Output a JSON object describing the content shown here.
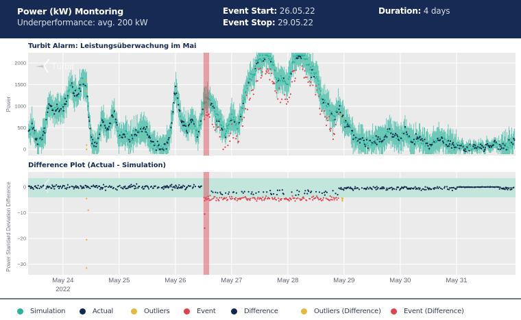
{
  "header": {
    "title": "Power (kW) Montoring",
    "subtitle": "Underperformance: avg. 200 kW",
    "event_start_label": "Event Start:",
    "event_start_value": "26.05.22",
    "event_stop_label": "Event Stop:",
    "event_stop_value": "29.05.22",
    "duration_label": "Duration:",
    "duration_value": "4 days"
  },
  "colors": {
    "header_bg": "#162a53",
    "simulation": "#26b59a",
    "actual": "#14284b",
    "outliers": "#e6b83d",
    "event": "#e0434d",
    "difference": "#14284b",
    "outliers_difference": "#e6b83d",
    "event_difference": "#e0434d",
    "band": "#c2e5dc",
    "event_band": "#e8999d",
    "plot_bg": "#ebebeb"
  },
  "watermark": "Turbit",
  "legend": [
    {
      "label": "Simulation",
      "color_key": "simulation"
    },
    {
      "label": "Actual",
      "color_key": "actual"
    },
    {
      "label": "Outliers",
      "color_key": "outliers"
    },
    {
      "label": "Event",
      "color_key": "event"
    },
    {
      "label": "Difference",
      "color_key": "difference"
    },
    {
      "label": "Outliers (Difference)",
      "color_key": "outliers_difference"
    },
    {
      "label": "Event (Difference)",
      "color_key": "event_difference"
    }
  ],
  "chart_data": [
    {
      "type": "scatter",
      "title": "Turbit Alarm: Leistungsüberwachung im Mai",
      "xlabel": "",
      "ylabel": "Power",
      "x_range_days": [
        23.38,
        32.05
      ],
      "ylim": [
        -80,
        2200
      ],
      "yticks": [
        0,
        500,
        1000,
        1500,
        2000
      ],
      "xticks": [
        {
          "day": 24,
          "label": "May 24",
          "sublabel": "2022"
        },
        {
          "day": 25,
          "label": "May 25"
        },
        {
          "day": 26,
          "label": "May 26"
        },
        {
          "day": 27,
          "label": "May 27"
        },
        {
          "day": 28,
          "label": "May 28"
        },
        {
          "day": 29,
          "label": "May 29"
        },
        {
          "day": 30,
          "label": "May 30"
        },
        {
          "day": 31,
          "label": "May 31"
        }
      ],
      "grid": true,
      "event_window_days": [
        26.5,
        26.6
      ],
      "series_profile": {
        "name": "Simulation / Actual (approx. shape, kW)",
        "x_days": [
          23.38,
          23.45,
          23.55,
          23.65,
          23.75,
          23.85,
          23.95,
          24.05,
          24.15,
          24.25,
          24.35,
          24.42,
          24.5,
          24.6,
          24.7,
          24.8,
          24.9,
          25.0,
          25.1,
          25.2,
          25.3,
          25.4,
          25.5,
          25.6,
          25.7,
          25.8,
          25.9,
          26.0,
          26.1,
          26.2,
          26.3,
          26.4,
          26.5,
          26.6,
          26.7,
          26.8,
          26.9,
          27.0,
          27.1,
          27.2,
          27.3,
          27.4,
          27.5,
          27.6,
          27.7,
          27.8,
          27.9,
          28.0,
          28.1,
          28.2,
          28.3,
          28.4,
          28.5,
          28.6,
          28.7,
          28.8,
          28.9,
          29.0,
          29.1,
          29.2,
          29.3,
          29.4,
          29.5,
          29.6,
          29.7,
          29.8,
          29.9,
          30.0,
          30.1,
          30.2,
          30.3,
          30.4,
          30.5,
          30.6,
          30.7,
          30.8,
          30.9,
          31.0,
          31.1,
          31.2,
          31.3,
          31.4,
          31.5,
          31.6,
          31.7,
          31.8,
          31.9,
          32.0,
          32.05
        ],
        "y_kw": [
          350,
          550,
          150,
          300,
          1000,
          950,
          900,
          1100,
          1500,
          1200,
          1600,
          1400,
          200,
          100,
          700,
          400,
          900,
          300,
          400,
          200,
          350,
          450,
          350,
          100,
          50,
          50,
          250,
          1400,
          700,
          500,
          700,
          350,
          1000,
          1200,
          900,
          600,
          400,
          800,
          500,
          1000,
          1600,
          1800,
          2100,
          2200,
          2100,
          1600,
          1700,
          1500,
          2100,
          2200,
          2100,
          1900,
          1700,
          1200,
          1100,
          700,
          1000,
          600,
          500,
          250,
          200,
          150,
          150,
          250,
          200,
          400,
          300,
          200,
          400,
          150,
          250,
          200,
          100,
          150,
          250,
          200,
          100,
          50,
          50,
          50,
          50,
          50,
          50,
          100,
          100,
          50,
          50,
          150,
          400
        ]
      },
      "outliers": [
        {
          "day": 24.42,
          "kw": 1600
        },
        {
          "day": 24.42,
          "kw": 1350
        },
        {
          "day": 24.42,
          "kw": 100
        },
        {
          "day": 24.42,
          "kw": 0
        },
        {
          "day": 28.95,
          "kw": 800
        },
        {
          "day": 28.98,
          "kw": 700
        }
      ],
      "event_range_days": [
        26.5,
        28.9
      ]
    },
    {
      "type": "scatter",
      "title": "Difference Plot (Actual - Simulation)",
      "xlabel": "",
      "ylabel": "Power Standard Deviation Difference",
      "x_range_days": [
        23.38,
        32.05
      ],
      "ylim": [
        -34,
        4
      ],
      "yticks": [
        0,
        -10,
        -20,
        -30
      ],
      "tolerance_band": [
        -4,
        3.5
      ],
      "difference_level": {
        "before_event": 0,
        "during_event": -4.5,
        "after_event": -0.5
      },
      "outliers_difference": [
        {
          "day": 24.42,
          "value": -4.5
        },
        {
          "day": 24.45,
          "value": -9
        },
        {
          "day": 24.42,
          "value": -20.5
        },
        {
          "day": 24.42,
          "value": -31.5
        },
        {
          "day": 28.97,
          "value": -5
        }
      ],
      "event_difference_extremes": [
        {
          "day": 26.52,
          "value": -10.5
        },
        {
          "day": 26.52,
          "value": -16
        }
      ]
    }
  ]
}
